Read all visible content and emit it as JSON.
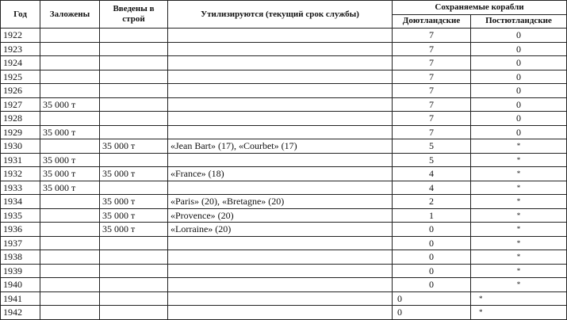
{
  "headers": {
    "year": "Год",
    "laid_down": "Заложены",
    "commissioned": "Введены в строй",
    "scrapped": "Утилизируются (текущий срок службы)",
    "retained": "Сохраняемые корабли",
    "pre_jutland": "Доютландские",
    "post_jutland": "Постютландские"
  },
  "rows": [
    {
      "year": "1922",
      "laid": "",
      "comm": "",
      "scrap": "",
      "pre": "7",
      "post": "0"
    },
    {
      "year": "1923",
      "laid": "",
      "comm": "",
      "scrap": "",
      "pre": "7",
      "post": "0"
    },
    {
      "year": "1924",
      "laid": "",
      "comm": "",
      "scrap": "",
      "pre": "7",
      "post": "0"
    },
    {
      "year": "1925",
      "laid": "",
      "comm": "",
      "scrap": "",
      "pre": "7",
      "post": "0"
    },
    {
      "year": "1926",
      "laid": "",
      "comm": "",
      "scrap": "",
      "pre": "7",
      "post": "0"
    },
    {
      "year": "1927",
      "laid": "35 000 т",
      "comm": "",
      "scrap": "",
      "pre": "7",
      "post": "0"
    },
    {
      "year": "1928",
      "laid": "",
      "comm": "",
      "scrap": "",
      "pre": "7",
      "post": "0"
    },
    {
      "year": "1929",
      "laid": "35 000 т",
      "comm": "",
      "scrap": "",
      "pre": "7",
      "post": "0"
    },
    {
      "year": "1930",
      "laid": "",
      "comm": "35 000 т",
      "scrap": "«Jean Bart» (17), «Courbet» (17)",
      "pre": "5",
      "post": "*"
    },
    {
      "year": "1931",
      "laid": "35 000 т",
      "comm": "",
      "scrap": "",
      "pre": "5",
      "post": "*"
    },
    {
      "year": "1932",
      "laid": "35 000 т",
      "comm": "35 000 т",
      "scrap": "«France» (18)",
      "pre": "4",
      "post": "*"
    },
    {
      "year": "1933",
      "laid": "35 000 т",
      "comm": "",
      "scrap": "",
      "pre": "4",
      "post": "*"
    },
    {
      "year": "1934",
      "laid": "",
      "comm": "35 000 т",
      "scrap": "«Paris» (20), «Bretagne» (20)",
      "pre": "2",
      "post": "*"
    },
    {
      "year": "1935",
      "laid": "",
      "comm": "35 000 т",
      "scrap": "«Provence» (20)",
      "pre": "1",
      "post": "*"
    },
    {
      "year": "1936",
      "laid": "",
      "comm": "35 000 т",
      "scrap": "«Lorraine» (20)",
      "pre": "0",
      "post": "*"
    },
    {
      "year": "1937",
      "laid": "",
      "comm": "",
      "scrap": "",
      "pre": "0",
      "post": "*"
    },
    {
      "year": "1938",
      "laid": "",
      "comm": "",
      "scrap": "",
      "pre": "0",
      "post": "*"
    },
    {
      "year": "1939",
      "laid": "",
      "comm": "",
      "scrap": "",
      "pre": "0",
      "post": "*"
    },
    {
      "year": "1940",
      "laid": "",
      "comm": "",
      "scrap": "",
      "pre": "0",
      "post": "*"
    },
    {
      "year": "1941",
      "laid": "",
      "comm": "",
      "scrap": "",
      "pre": "0",
      "post": "*",
      "left": true
    },
    {
      "year": "1942",
      "laid": "",
      "comm": "",
      "scrap": "",
      "pre": "0",
      "post": "*",
      "left": true
    }
  ]
}
